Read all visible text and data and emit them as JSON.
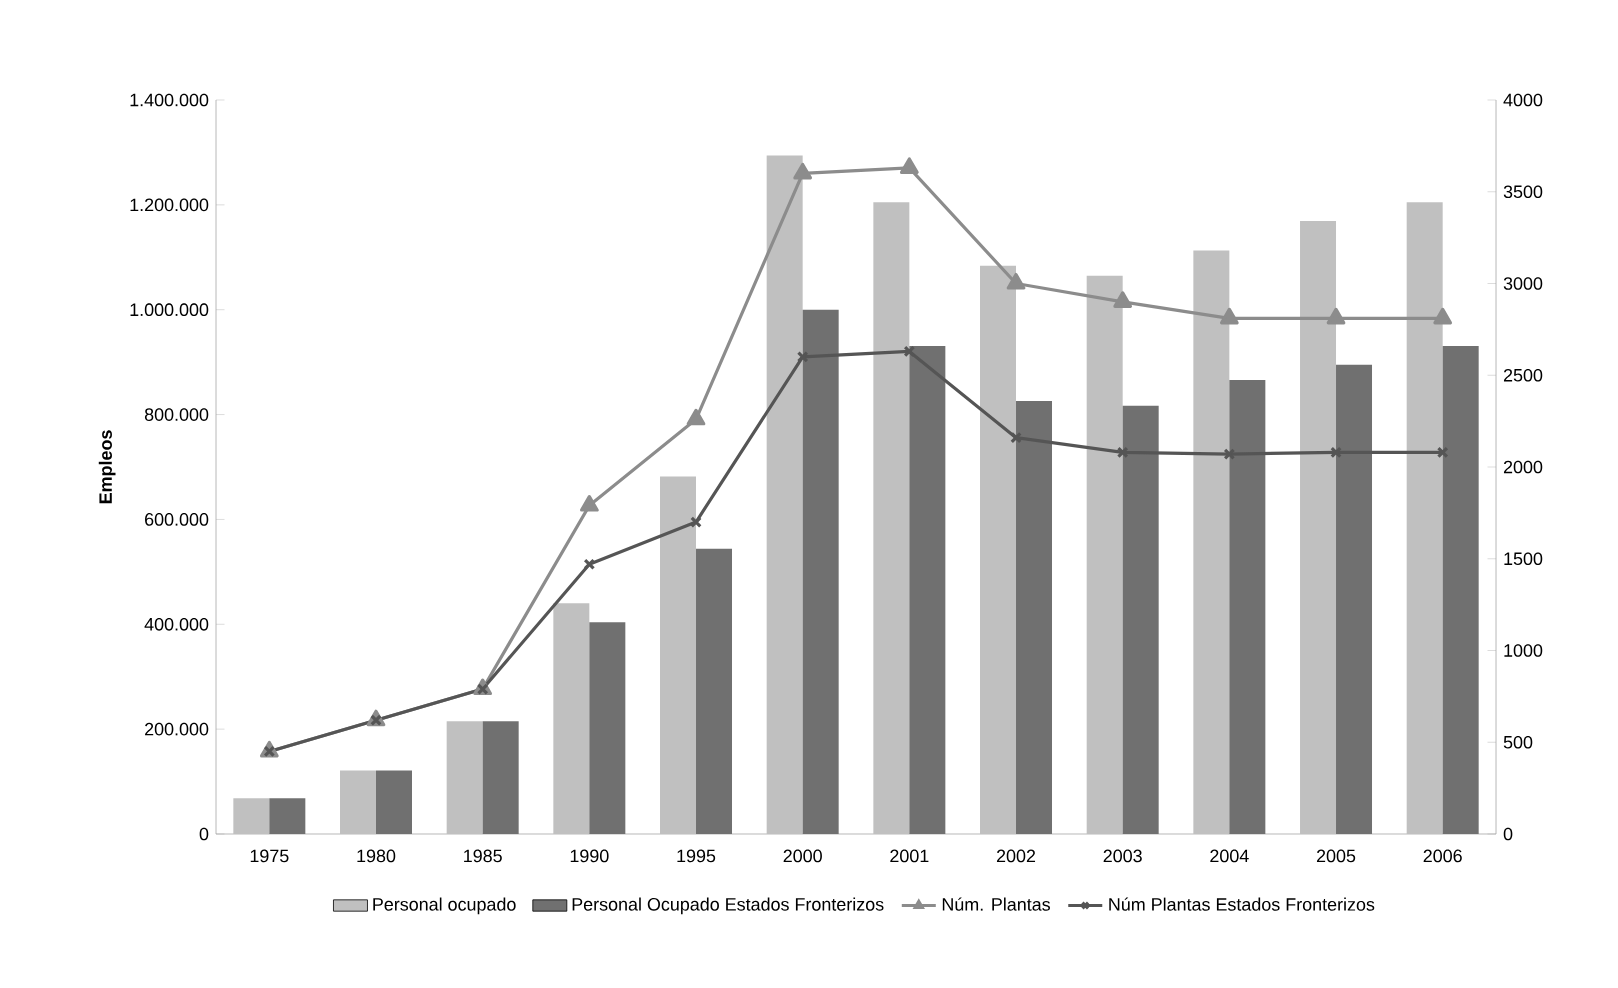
{
  "chart_data": {
    "type": "bar",
    "ylabel": "Empleos",
    "categories": [
      "1975",
      "1980",
      "1985",
      "1990",
      "1995",
      "2000",
      "2001",
      "2002",
      "2003",
      "2004",
      "2005",
      "2006"
    ],
    "series": [
      {
        "name": "Personal ocupado",
        "color": "#c0c0c0",
        "values": [
          68000,
          121000,
          215000,
          440000,
          682000,
          1294000,
          1205000,
          1084000,
          1065000,
          1113000,
          1169000,
          1205000
        ]
      },
      {
        "name": "Personal Ocupado Estados Fronterizos",
        "color": "#707070",
        "values": [
          68000,
          121000,
          215000,
          404000,
          544000,
          1000000,
          931000,
          826000,
          817000,
          866000,
          895000,
          931000
        ]
      },
      {
        "name": "Núm. Plantas",
        "type": "line",
        "axis": "y2",
        "marker": "triangle",
        "color": "#8c8c8c",
        "values": [
          450,
          620,
          790,
          1790,
          2260,
          3600,
          3630,
          3000,
          2900,
          2810,
          2810,
          2810
        ]
      },
      {
        "name": "Núm Plantas Estados Fronterizos",
        "type": "line",
        "axis": "y2",
        "marker": "cross",
        "color": "#555555",
        "values": [
          450,
          620,
          790,
          1470,
          1700,
          2600,
          2630,
          2160,
          2080,
          2070,
          2080,
          2080
        ]
      }
    ],
    "ylim": [
      0,
      1400000
    ],
    "yticks": [
      {
        "value": 0,
        "label": "0"
      },
      {
        "value": 200000,
        "label": "200.000"
      },
      {
        "value": 400000,
        "label": "400.000"
      },
      {
        "value": 600000,
        "label": "600.000"
      },
      {
        "value": 800000,
        "label": "800.000"
      },
      {
        "value": 1000000,
        "label": "1.000.000"
      },
      {
        "value": 1200000,
        "label": "1.200.000"
      },
      {
        "value": 1400000,
        "label": "1.400.000"
      }
    ],
    "y2lim": [
      0,
      4000
    ],
    "y2ticks": [
      0,
      500,
      1000,
      1500,
      2000,
      2500,
      3000,
      3500,
      4000
    ],
    "legend": "bottom",
    "grid": false
  }
}
